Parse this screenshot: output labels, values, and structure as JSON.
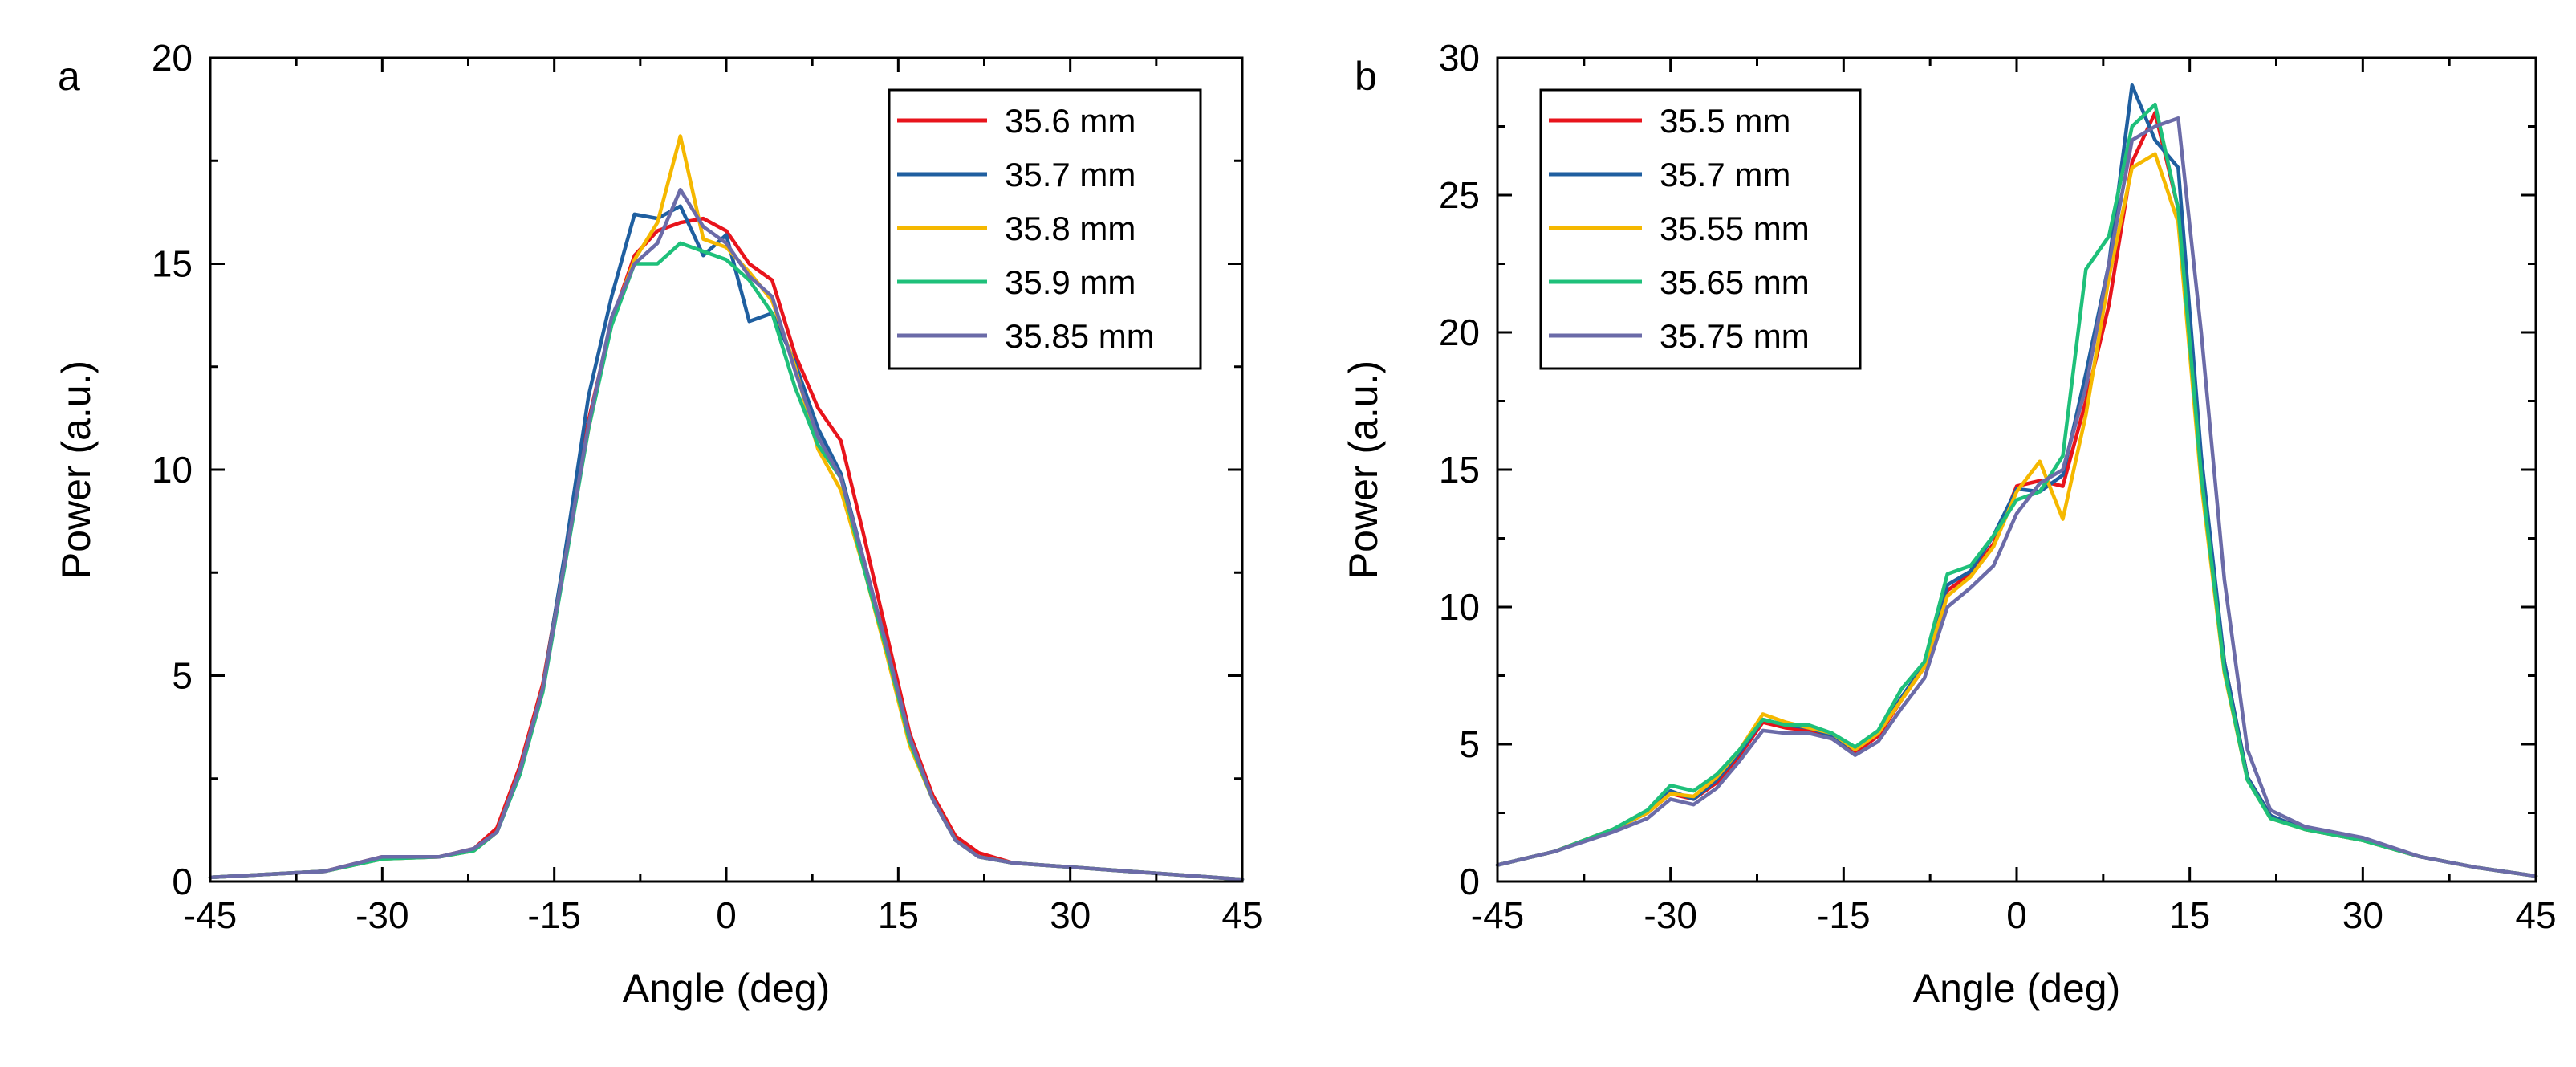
{
  "chart_data": [
    {
      "type": "line",
      "panel_label": "a",
      "xlabel": "Angle (deg)",
      "ylabel": "Power (a.u.)",
      "xlim": [
        -45,
        45
      ],
      "ylim": [
        0,
        20
      ],
      "xticks": [
        -45,
        -30,
        -15,
        0,
        15,
        30,
        45
      ],
      "yticks": [
        0,
        5,
        10,
        15,
        20
      ],
      "legend_position": "top-right",
      "series": [
        {
          "name": "35.6 mm",
          "color": "#e8141c",
          "x": [
            -45,
            -35,
            -30,
            -25,
            -22,
            -20,
            -18,
            -16,
            -14,
            -12,
            -10,
            -8,
            -6,
            -4,
            -2,
            0,
            2,
            4,
            6,
            8,
            10,
            12,
            14,
            16,
            18,
            20,
            22,
            25,
            30,
            35,
            40,
            45
          ],
          "y": [
            0.1,
            0.25,
            0.6,
            0.6,
            0.8,
            1.3,
            2.8,
            4.8,
            8.0,
            11.2,
            13.6,
            15.2,
            15.8,
            16.0,
            16.1,
            15.8,
            15.0,
            14.6,
            12.8,
            11.5,
            10.7,
            8.4,
            6.0,
            3.6,
            2.1,
            1.1,
            0.7,
            0.45,
            0.35,
            0.25,
            0.15,
            0.05
          ]
        },
        {
          "name": "35.7 mm",
          "color": "#1f5fa0",
          "x": [
            -45,
            -35,
            -30,
            -25,
            -22,
            -20,
            -18,
            -16,
            -14,
            -12,
            -10,
            -8,
            -6,
            -4,
            -2,
            0,
            2,
            4,
            6,
            8,
            10,
            12,
            14,
            16,
            18,
            20,
            22,
            25,
            30,
            35,
            40,
            45
          ],
          "y": [
            0.1,
            0.25,
            0.55,
            0.6,
            0.75,
            1.2,
            2.6,
            4.7,
            8.1,
            11.8,
            14.2,
            16.2,
            16.1,
            16.4,
            15.2,
            15.7,
            13.6,
            13.8,
            12.6,
            11.0,
            9.9,
            7.8,
            5.7,
            3.4,
            2.0,
            1.0,
            0.6,
            0.45,
            0.35,
            0.25,
            0.15,
            0.05
          ]
        },
        {
          "name": "35.8 mm",
          "color": "#f5b800",
          "x": [
            -45,
            -35,
            -30,
            -25,
            -22,
            -20,
            -18,
            -16,
            -14,
            -12,
            -10,
            -8,
            -6,
            -4,
            -2,
            0,
            2,
            4,
            6,
            8,
            10,
            12,
            14,
            16,
            18,
            20,
            22,
            25,
            30,
            35,
            40,
            45
          ],
          "y": [
            0.1,
            0.25,
            0.55,
            0.6,
            0.75,
            1.2,
            2.7,
            4.7,
            7.9,
            11.0,
            13.6,
            15.1,
            16.0,
            18.1,
            15.6,
            15.4,
            14.8,
            14.1,
            12.5,
            10.5,
            9.5,
            7.6,
            5.5,
            3.3,
            2.0,
            1.0,
            0.6,
            0.45,
            0.35,
            0.25,
            0.15,
            0.05
          ]
        },
        {
          "name": "35.9 mm",
          "color": "#1ec07a",
          "x": [
            -45,
            -35,
            -30,
            -25,
            -22,
            -20,
            -18,
            -16,
            -14,
            -12,
            -10,
            -8,
            -6,
            -4,
            -2,
            0,
            2,
            4,
            6,
            8,
            10,
            12,
            14,
            16,
            18,
            20,
            22,
            25,
            30,
            35,
            40,
            45
          ],
          "y": [
            0.1,
            0.25,
            0.55,
            0.6,
            0.75,
            1.2,
            2.6,
            4.6,
            7.8,
            11.0,
            13.5,
            15.0,
            15.0,
            15.5,
            15.3,
            15.1,
            14.6,
            13.8,
            12.0,
            10.6,
            9.8,
            7.6,
            5.6,
            3.4,
            2.0,
            1.0,
            0.6,
            0.45,
            0.35,
            0.25,
            0.15,
            0.05
          ]
        },
        {
          "name": "35.85 mm",
          "color": "#6b6ba8",
          "x": [
            -45,
            -35,
            -30,
            -25,
            -22,
            -20,
            -18,
            -16,
            -14,
            -12,
            -10,
            -8,
            -6,
            -4,
            -2,
            0,
            2,
            4,
            6,
            8,
            10,
            12,
            14,
            16,
            18,
            20,
            22,
            25,
            30,
            35,
            40,
            45
          ],
          "y": [
            0.1,
            0.25,
            0.6,
            0.6,
            0.8,
            1.2,
            2.7,
            4.7,
            7.9,
            11.1,
            13.7,
            15.0,
            15.5,
            16.8,
            15.9,
            15.5,
            14.7,
            14.2,
            12.4,
            10.8,
            9.8,
            7.8,
            5.7,
            3.5,
            2.0,
            1.0,
            0.6,
            0.45,
            0.35,
            0.25,
            0.15,
            0.05
          ]
        }
      ]
    },
    {
      "type": "line",
      "panel_label": "b",
      "xlabel": "Angle (deg)",
      "ylabel": "Power (a.u.)",
      "xlim": [
        -45,
        45
      ],
      "ylim": [
        0,
        30
      ],
      "xticks": [
        -45,
        -30,
        -15,
        0,
        15,
        30,
        45
      ],
      "yticks": [
        0,
        5,
        10,
        15,
        20,
        25,
        30
      ],
      "legend_position": "top-left",
      "series": [
        {
          "name": "35.5 mm",
          "color": "#e8141c",
          "x": [
            -45,
            -40,
            -35,
            -32,
            -30,
            -28,
            -26,
            -24,
            -22,
            -20,
            -18,
            -16,
            -14,
            -12,
            -10,
            -8,
            -6,
            -4,
            -2,
            0,
            2,
            4,
            6,
            8,
            10,
            12,
            14,
            16,
            18,
            20,
            22,
            25,
            30,
            35,
            40,
            45
          ],
          "y": [
            0.6,
            1.1,
            1.9,
            2.5,
            3.2,
            3.0,
            3.6,
            4.6,
            5.8,
            5.6,
            5.5,
            5.2,
            4.7,
            5.3,
            6.6,
            7.8,
            10.6,
            11.2,
            12.3,
            14.4,
            14.6,
            14.4,
            17.5,
            21.0,
            26.2,
            28.0,
            24.5,
            15.0,
            8.0,
            3.8,
            2.4,
            1.9,
            1.5,
            0.9,
            0.5,
            0.2
          ]
        },
        {
          "name": "35.7 mm",
          "color": "#1f5fa0",
          "x": [
            -45,
            -40,
            -35,
            -32,
            -30,
            -28,
            -26,
            -24,
            -22,
            -20,
            -18,
            -16,
            -14,
            -12,
            -10,
            -8,
            -6,
            -4,
            -2,
            0,
            2,
            4,
            6,
            8,
            10,
            12,
            14,
            16,
            18,
            20,
            22,
            25,
            30,
            35,
            40,
            45
          ],
          "y": [
            0.6,
            1.1,
            1.9,
            2.5,
            3.3,
            3.0,
            3.7,
            4.7,
            5.9,
            5.7,
            5.6,
            5.3,
            4.8,
            5.4,
            6.7,
            7.9,
            10.8,
            11.3,
            12.6,
            14.3,
            14.2,
            14.8,
            18.5,
            22.5,
            29.0,
            27.0,
            26.0,
            15.5,
            8.0,
            3.8,
            2.4,
            1.9,
            1.5,
            0.9,
            0.5,
            0.2
          ]
        },
        {
          "name": "35.55 mm",
          "color": "#f5b800",
          "x": [
            -45,
            -40,
            -35,
            -32,
            -30,
            -28,
            -26,
            -24,
            -22,
            -20,
            -18,
            -16,
            -14,
            -12,
            -10,
            -8,
            -6,
            -4,
            -2,
            0,
            2,
            4,
            6,
            8,
            10,
            12,
            14,
            16,
            18,
            20,
            22,
            25,
            30,
            35,
            40,
            45
          ],
          "y": [
            0.6,
            1.1,
            1.9,
            2.5,
            3.2,
            3.1,
            3.8,
            4.8,
            6.1,
            5.8,
            5.6,
            5.4,
            4.8,
            5.4,
            6.6,
            7.8,
            10.4,
            11.1,
            12.2,
            14.2,
            15.3,
            13.2,
            17.0,
            22.0,
            26.0,
            26.5,
            24.0,
            14.5,
            7.6,
            3.7,
            2.3,
            1.9,
            1.5,
            0.9,
            0.5,
            0.2
          ]
        },
        {
          "name": "35.65 mm",
          "color": "#1ec07a",
          "x": [
            -45,
            -40,
            -35,
            -32,
            -30,
            -28,
            -26,
            -24,
            -22,
            -20,
            -18,
            -16,
            -14,
            -12,
            -10,
            -8,
            -6,
            -4,
            -2,
            0,
            2,
            4,
            6,
            8,
            10,
            12,
            14,
            16,
            18,
            20,
            22,
            25,
            30,
            35,
            40,
            45
          ],
          "y": [
            0.6,
            1.1,
            1.9,
            2.6,
            3.5,
            3.3,
            3.9,
            4.8,
            5.9,
            5.7,
            5.7,
            5.4,
            4.9,
            5.5,
            7.0,
            8.0,
            11.2,
            11.5,
            12.6,
            13.9,
            14.2,
            15.5,
            22.3,
            23.5,
            27.5,
            28.3,
            24.5,
            14.8,
            7.7,
            3.7,
            2.3,
            1.9,
            1.5,
            0.9,
            0.5,
            0.2
          ]
        },
        {
          "name": "35.75 mm",
          "color": "#6b6ba8",
          "x": [
            -45,
            -40,
            -35,
            -32,
            -30,
            -28,
            -26,
            -24,
            -22,
            -20,
            -18,
            -16,
            -14,
            -12,
            -10,
            -8,
            -6,
            -4,
            -2,
            0,
            2,
            4,
            6,
            8,
            10,
            12,
            14,
            16,
            18,
            20,
            22,
            25,
            30,
            35,
            40,
            45
          ],
          "y": [
            0.6,
            1.1,
            1.8,
            2.3,
            3.0,
            2.8,
            3.4,
            4.4,
            5.5,
            5.4,
            5.4,
            5.2,
            4.6,
            5.1,
            6.3,
            7.4,
            10.0,
            10.7,
            11.5,
            13.4,
            14.5,
            15.0,
            18.0,
            22.5,
            27.0,
            27.5,
            27.8,
            20.0,
            11.0,
            4.8,
            2.6,
            2.0,
            1.6,
            0.9,
            0.5,
            0.2
          ]
        }
      ]
    }
  ]
}
